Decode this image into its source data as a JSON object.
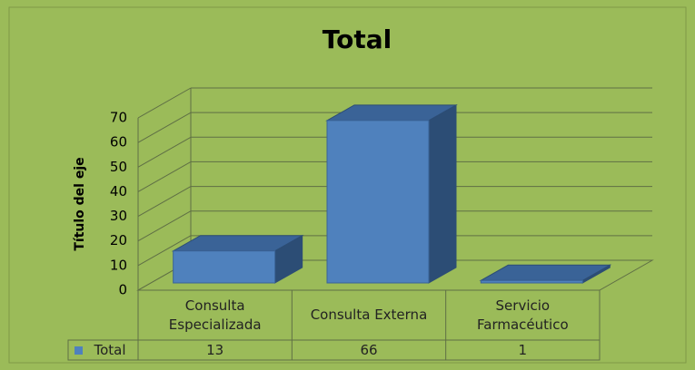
{
  "chart_data": {
    "type": "bar3d",
    "title": "Total",
    "y_label": "Título del eje",
    "categories": [
      "Consulta Especializada",
      "Consulta Externa",
      "Servicio Farmacéutico"
    ],
    "series": [
      {
        "name": "Total",
        "color": "#4f81bd",
        "values": [
          13,
          66,
          1
        ]
      }
    ],
    "ylim": [
      0,
      70
    ],
    "yticks": [
      0,
      10,
      20,
      30,
      40,
      50,
      60,
      70
    ],
    "grid": true,
    "data_table": true
  }
}
